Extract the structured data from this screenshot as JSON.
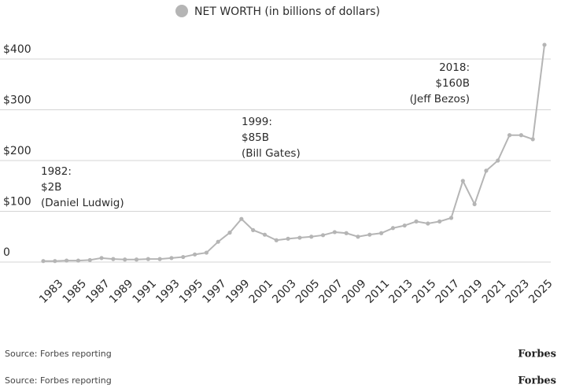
{
  "chart_data": {
    "type": "line",
    "series": [
      {
        "name": "NET WORTH (in billions of dollars)",
        "color": "#b5b5b5",
        "values": [
          2,
          2,
          3,
          3,
          4,
          8,
          6,
          5,
          5,
          6,
          6,
          8,
          10,
          15,
          18.5,
          40,
          58,
          85,
          63,
          54,
          43,
          46,
          48,
          50,
          53,
          59,
          57,
          50,
          54,
          57,
          67,
          72,
          80,
          76,
          80,
          87,
          160,
          114,
          180,
          200,
          250,
          250,
          242,
          428
        ]
      }
    ],
    "x": [
      1982,
      1983,
      1984,
      1985,
      1986,
      1987,
      1988,
      1989,
      1990,
      1991,
      1992,
      1993,
      1994,
      1995,
      1996,
      1997,
      1998,
      1999,
      2000,
      2001,
      2002,
      2003,
      2004,
      2005,
      2006,
      2007,
      2008,
      2009,
      2010,
      2011,
      2012,
      2013,
      2014,
      2015,
      2016,
      2017,
      2018,
      2019,
      2020,
      2021,
      2022,
      2023,
      2024,
      2025
    ],
    "xlim": [
      1982,
      2025
    ],
    "xticks": [
      1983,
      1985,
      1987,
      1989,
      1991,
      1993,
      1995,
      1997,
      1999,
      2001,
      2003,
      2005,
      2007,
      2009,
      2011,
      2013,
      2015,
      2017,
      2019,
      2021,
      2023,
      2025
    ],
    "ylim": [
      0,
      440
    ],
    "yticks": [
      0,
      {
        "value": 100,
        "label": "$100"
      },
      {
        "value": 200,
        "label": "$200"
      },
      {
        "value": 300,
        "label": "$300"
      },
      {
        "value": 400,
        "label": "$400"
      }
    ],
    "grid": true,
    "annotations": [
      {
        "lines": [
          "1982:",
          "$2B",
          "(Daniel Ludwig)"
        ]
      },
      {
        "lines": [
          "1999:",
          "$85B",
          "(Bill Gates)"
        ]
      },
      {
        "lines": [
          "2018:",
          "$160B",
          "(Jeff Bezos)"
        ]
      }
    ]
  },
  "footer": [
    {
      "source": "Source: Forbes reporting",
      "logo": "Forbes"
    },
    {
      "source": "Source: Forbes reporting",
      "logo": "Forbes"
    }
  ]
}
